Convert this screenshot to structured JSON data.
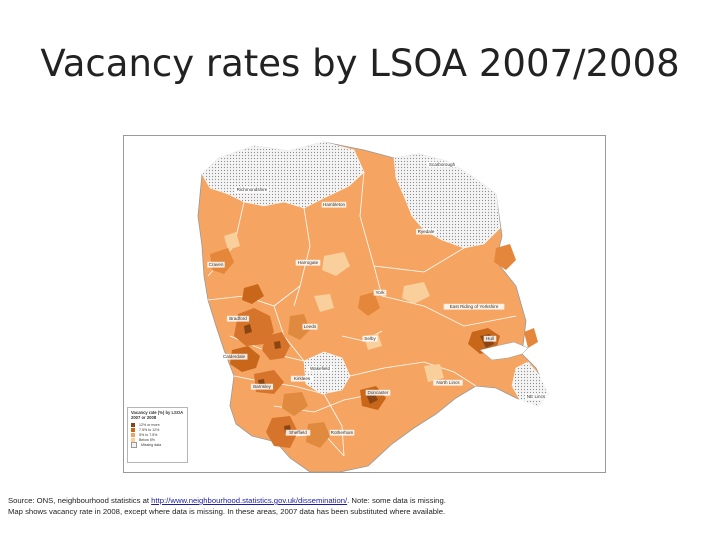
{
  "title": "Vacancy rates by LSOA 2007/2008",
  "colors": {
    "high": "#8b4513",
    "mid_high": "#c8661a",
    "mid": "#f2a35f",
    "low": "#f9cf9c",
    "missing": "#f2f2f2",
    "boundary": "#ffffff",
    "region_edge": "#9a9a9a"
  },
  "map": {
    "places": [
      "Scarborough",
      "Richmondshire",
      "Hambleton",
      "Ryedale",
      "Craven",
      "Harrogate",
      "York",
      "East Riding of Yorkshire",
      "Bradford",
      "Leeds",
      "Selby",
      "Hull",
      "Calderdale",
      "Wakefield",
      "Kirklees",
      "Barnsley",
      "Doncaster",
      "North Lincs",
      "NE Lincs",
      "Sheffield",
      "Rotherham"
    ],
    "legend": {
      "title": "Vacancy rate (%) by LSOA 2007 or 2008",
      "items": [
        {
          "label": "12% or more",
          "color_key": "high"
        },
        {
          "label": "7.5% to 12%",
          "color_key": "mid_high"
        },
        {
          "label": "5% to 7.5%",
          "color_key": "mid"
        },
        {
          "label": "Below 5%",
          "color_key": "low"
        },
        {
          "label": "Missing data",
          "color_key": "missing"
        }
      ]
    }
  },
  "caption": {
    "line1_prefix": "Source: ONS, neighbourhood statistics at ",
    "link": "http://www.neighbourhood.statistics.gov.uk/dissemination/",
    "line1_suffix": ". Note: some data is missing.",
    "line2": "Map shows vacancy rate in 2008, except where data is missing.  In these areas, 2007 data has been substituted where available."
  }
}
